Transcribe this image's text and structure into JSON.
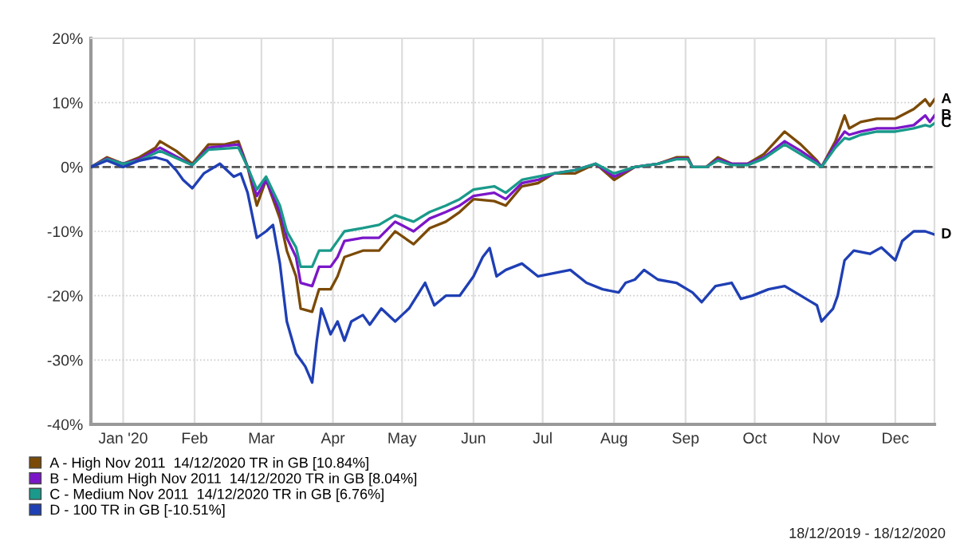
{
  "chart_data": {
    "type": "line",
    "xlim": [
      "2019-12-18",
      "2020-12-18"
    ],
    "ylim": [
      -40,
      20
    ],
    "yticks": [
      {
        "value": -40,
        "label": "-40%"
      },
      {
        "value": -30,
        "label": "-30%"
      },
      {
        "value": -20,
        "label": "-20%"
      },
      {
        "value": -10,
        "label": "-10%"
      },
      {
        "value": 0,
        "label": "0%"
      },
      {
        "value": 10,
        "label": "10%"
      },
      {
        "value": 20,
        "label": "20%"
      }
    ],
    "xticks": [
      {
        "value": "2020-01-01",
        "label": "Jan '20"
      },
      {
        "value": "2020-02-01",
        "label": "Feb"
      },
      {
        "value": "2020-03-01",
        "label": "Mar"
      },
      {
        "value": "2020-04-01",
        "label": "Apr"
      },
      {
        "value": "2020-05-01",
        "label": "May"
      },
      {
        "value": "2020-06-01",
        "label": "Jun"
      },
      {
        "value": "2020-07-01",
        "label": "Jul"
      },
      {
        "value": "2020-08-01",
        "label": "Aug"
      },
      {
        "value": "2020-09-01",
        "label": "Sep"
      },
      {
        "value": "2020-10-01",
        "label": "Oct"
      },
      {
        "value": "2020-11-01",
        "label": "Nov"
      },
      {
        "value": "2020-12-01",
        "label": "Dec"
      }
    ],
    "grid": true,
    "legend": "bottom",
    "marker": "none",
    "line_style": "solid",
    "ref_lines": [
      {
        "axis": "y",
        "value": 0,
        "label": null,
        "color": "#555555",
        "line_style": "dashed"
      }
    ],
    "series": [
      {
        "name": "A - High Nov 2011  14/12/2020 TR in GB [10.84%]",
        "color": "#7b4a06",
        "x": [
          "2019-12-18",
          "2019-12-25",
          "2020-01-01",
          "2020-01-08",
          "2020-01-15",
          "2020-01-17",
          "2020-01-24",
          "2020-01-31",
          "2020-02-07",
          "2020-02-14",
          "2020-02-20",
          "2020-02-24",
          "2020-02-28",
          "2020-03-03",
          "2020-03-09",
          "2020-03-12",
          "2020-03-16",
          "2020-03-18",
          "2020-03-23",
          "2020-03-26",
          "2020-03-31",
          "2020-04-03",
          "2020-04-06",
          "2020-04-14",
          "2020-04-21",
          "2020-04-28",
          "2020-05-06",
          "2020-05-13",
          "2020-05-20",
          "2020-05-26",
          "2020-06-01",
          "2020-06-10",
          "2020-06-15",
          "2020-06-22",
          "2020-06-29",
          "2020-07-06",
          "2020-07-15",
          "2020-07-24",
          "2020-08-01",
          "2020-08-10",
          "2020-08-20",
          "2020-08-28",
          "2020-09-02",
          "2020-09-04",
          "2020-09-10",
          "2020-09-15",
          "2020-09-21",
          "2020-09-28",
          "2020-10-05",
          "2020-10-14",
          "2020-10-21",
          "2020-10-28",
          "2020-10-30",
          "2020-11-05",
          "2020-11-09",
          "2020-11-11",
          "2020-11-16",
          "2020-11-23",
          "2020-12-01",
          "2020-12-09",
          "2020-12-14",
          "2020-12-16",
          "2020-12-18"
        ],
        "values": [
          0,
          1.5,
          0.5,
          1.5,
          3,
          4,
          2.5,
          0.5,
          3.5,
          3.5,
          4,
          0,
          -6,
          -2,
          -8,
          -13,
          -17,
          -22,
          -22.5,
          -19,
          -19,
          -17,
          -14,
          -13,
          -13,
          -10,
          -12,
          -9.5,
          -8.5,
          -7,
          -5,
          -5.3,
          -6,
          -3,
          -2.5,
          -1,
          -1,
          0.5,
          -2,
          0,
          0.5,
          1.5,
          1.5,
          0,
          0,
          1.5,
          0.5,
          0.5,
          2,
          5.5,
          3.5,
          1,
          0,
          4,
          8,
          6,
          7,
          7.5,
          7.5,
          9,
          10.5,
          9.5,
          10.5
        ]
      },
      {
        "name": "B - Medium High Nov 2011  14/12/2020 TR in GB [8.04%]",
        "color": "#7b16c8",
        "x": [
          "2019-12-18",
          "2019-12-25",
          "2020-01-01",
          "2020-01-08",
          "2020-01-17",
          "2020-01-31",
          "2020-02-07",
          "2020-02-20",
          "2020-02-24",
          "2020-02-28",
          "2020-03-03",
          "2020-03-09",
          "2020-03-12",
          "2020-03-16",
          "2020-03-18",
          "2020-03-23",
          "2020-03-26",
          "2020-03-31",
          "2020-04-03",
          "2020-04-06",
          "2020-04-14",
          "2020-04-21",
          "2020-04-28",
          "2020-05-06",
          "2020-05-13",
          "2020-05-20",
          "2020-05-26",
          "2020-06-01",
          "2020-06-10",
          "2020-06-15",
          "2020-06-22",
          "2020-06-29",
          "2020-07-06",
          "2020-07-15",
          "2020-07-24",
          "2020-08-01",
          "2020-08-10",
          "2020-08-20",
          "2020-08-28",
          "2020-09-02",
          "2020-09-04",
          "2020-09-10",
          "2020-09-15",
          "2020-09-21",
          "2020-09-28",
          "2020-10-05",
          "2020-10-14",
          "2020-10-21",
          "2020-10-28",
          "2020-10-30",
          "2020-11-05",
          "2020-11-09",
          "2020-11-11",
          "2020-11-16",
          "2020-11-23",
          "2020-12-01",
          "2020-12-09",
          "2020-12-14",
          "2020-12-16",
          "2020-12-18"
        ],
        "values": [
          0,
          1.3,
          0.5,
          1.2,
          3,
          0.3,
          3,
          3.5,
          0,
          -4.5,
          -2,
          -7,
          -11,
          -14,
          -18,
          -18.5,
          -15.5,
          -15.5,
          -14,
          -11.5,
          -11,
          -11,
          -8.5,
          -10,
          -8,
          -7,
          -6,
          -4.5,
          -4,
          -5,
          -2.5,
          -2,
          -1,
          -0.5,
          0.5,
          -1.5,
          0,
          0.5,
          1.3,
          1.3,
          0,
          0,
          1.2,
          0.5,
          0.5,
          1.5,
          4,
          2.5,
          0.8,
          0,
          3.5,
          5.5,
          5,
          5.5,
          6,
          6,
          6.5,
          8,
          7,
          8
        ]
      },
      {
        "name": "C - Medium Nov 2011  14/12/2020 TR in GB [6.76%]",
        "color": "#1a9a8a",
        "x": [
          "2019-12-18",
          "2019-12-25",
          "2020-01-01",
          "2020-01-08",
          "2020-01-17",
          "2020-01-31",
          "2020-02-07",
          "2020-02-20",
          "2020-02-24",
          "2020-02-28",
          "2020-03-03",
          "2020-03-09",
          "2020-03-12",
          "2020-03-16",
          "2020-03-18",
          "2020-03-23",
          "2020-03-26",
          "2020-03-31",
          "2020-04-03",
          "2020-04-06",
          "2020-04-14",
          "2020-04-21",
          "2020-04-28",
          "2020-05-06",
          "2020-05-13",
          "2020-05-20",
          "2020-05-26",
          "2020-06-01",
          "2020-06-10",
          "2020-06-15",
          "2020-06-22",
          "2020-06-29",
          "2020-07-06",
          "2020-07-15",
          "2020-07-24",
          "2020-08-01",
          "2020-08-10",
          "2020-08-20",
          "2020-08-28",
          "2020-09-02",
          "2020-09-04",
          "2020-09-10",
          "2020-09-15",
          "2020-09-21",
          "2020-09-28",
          "2020-10-05",
          "2020-10-14",
          "2020-10-21",
          "2020-10-28",
          "2020-10-30",
          "2020-11-05",
          "2020-11-09",
          "2020-11-11",
          "2020-11-16",
          "2020-11-23",
          "2020-12-01",
          "2020-12-09",
          "2020-12-14",
          "2020-12-16",
          "2020-12-18"
        ],
        "values": [
          0,
          1.2,
          0.5,
          1,
          2.5,
          0.3,
          2.7,
          3,
          0,
          -3.5,
          -1.5,
          -6,
          -10,
          -12.5,
          -15.5,
          -15.5,
          -13,
          -13,
          -11.5,
          -10,
          -9.5,
          -9,
          -7.5,
          -8.5,
          -7,
          -6,
          -5,
          -3.5,
          -3,
          -4,
          -2,
          -1.5,
          -1,
          -0.5,
          0.5,
          -1,
          0,
          0.5,
          1.2,
          1.2,
          0,
          0,
          1,
          0.3,
          0.3,
          1.3,
          3.5,
          2,
          0.5,
          0,
          3,
          4.5,
          4.3,
          5,
          5.5,
          5.5,
          6,
          6.5,
          6.3,
          6.8
        ]
      },
      {
        "name": "D - 100 TR in GB [-10.51%]",
        "color": "#1f3fb4",
        "x": [
          "2019-12-18",
          "2019-12-25",
          "2020-01-01",
          "2020-01-08",
          "2020-01-15",
          "2020-01-20",
          "2020-01-24",
          "2020-01-27",
          "2020-01-31",
          "2020-02-05",
          "2020-02-12",
          "2020-02-18",
          "2020-02-21",
          "2020-02-24",
          "2020-02-28",
          "2020-03-03",
          "2020-03-06",
          "2020-03-09",
          "2020-03-12",
          "2020-03-16",
          "2020-03-18",
          "2020-03-20",
          "2020-03-23",
          "2020-03-25",
          "2020-03-27",
          "2020-03-31",
          "2020-04-03",
          "2020-04-06",
          "2020-04-09",
          "2020-04-14",
          "2020-04-17",
          "2020-04-22",
          "2020-04-28",
          "2020-05-01",
          "2020-05-04",
          "2020-05-11",
          "2020-05-15",
          "2020-05-20",
          "2020-05-26",
          "2020-06-01",
          "2020-06-05",
          "2020-06-08",
          "2020-06-11",
          "2020-06-15",
          "2020-06-22",
          "2020-06-29",
          "2020-07-06",
          "2020-07-13",
          "2020-07-20",
          "2020-07-27",
          "2020-08-03",
          "2020-08-06",
          "2020-08-10",
          "2020-08-14",
          "2020-08-20",
          "2020-08-28",
          "2020-09-04",
          "2020-09-08",
          "2020-09-14",
          "2020-09-21",
          "2020-09-25",
          "2020-09-30",
          "2020-10-07",
          "2020-10-14",
          "2020-10-21",
          "2020-10-28",
          "2020-10-30",
          "2020-11-04",
          "2020-11-06",
          "2020-11-09",
          "2020-11-13",
          "2020-11-20",
          "2020-11-25",
          "2020-12-01",
          "2020-12-04",
          "2020-12-09",
          "2020-12-14",
          "2020-12-18"
        ],
        "values": [
          0,
          1,
          0,
          1,
          1.5,
          1,
          -0.5,
          -2,
          -3.3,
          -1,
          0.5,
          -1.5,
          -1,
          -4,
          -11,
          -10,
          -9,
          -15,
          -24,
          -29,
          -30,
          -31,
          -33.5,
          -27,
          -22,
          -26,
          -24,
          -27,
          -24,
          -23,
          -24.5,
          -22,
          -24,
          -23,
          -22,
          -18,
          -21.5,
          -20,
          -20,
          -17,
          -14,
          -12.6,
          -17,
          -16,
          -15,
          -17,
          -16.5,
          -16,
          -18,
          -19,
          -19.5,
          -18,
          -17.5,
          -16,
          -17.5,
          -18,
          -19.5,
          -21,
          -18.5,
          -18,
          -20.5,
          -20,
          -19,
          -18.5,
          -20,
          -21.5,
          -24,
          -22,
          -20,
          -14.5,
          -13,
          -13.5,
          -12.5,
          -14.5,
          -11.5,
          -10,
          -10,
          -10.5
        ]
      }
    ],
    "annotations": [
      {
        "text": "A",
        "x": "2020-12-18",
        "y": 10.5
      },
      {
        "text": "B",
        "x": "2020-12-18",
        "y": 8
      },
      {
        "text": "C",
        "x": "2020-12-18",
        "y": 6.8
      },
      {
        "text": "D",
        "x": "2020-12-18",
        "y": -10.5
      },
      "18/12/2019 - 18/12/2020"
    ]
  }
}
